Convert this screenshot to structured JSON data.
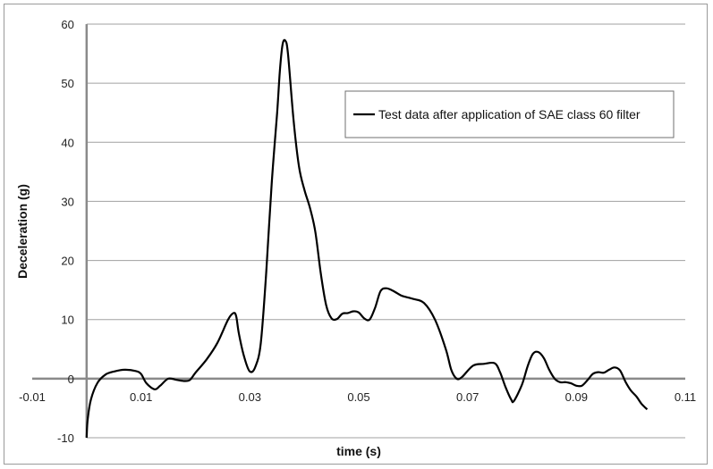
{
  "chart_data": {
    "type": "line",
    "xlabel": "time (s)",
    "ylabel": "Deceleration (g)",
    "xlim": [
      -0.01,
      0.11
    ],
    "ylim": [
      -10,
      60
    ],
    "x_ticks": [
      -0.01,
      0.01,
      0.03,
      0.05,
      0.07,
      0.09,
      0.11
    ],
    "x_tick_labels": [
      "-0.01",
      "0.01",
      "0.03",
      "0.05",
      "0.07",
      "0.09",
      "0.11"
    ],
    "y_ticks": [
      -10,
      0,
      10,
      20,
      30,
      40,
      50,
      60
    ],
    "y_tick_labels": [
      "-10",
      "0",
      "10",
      "20",
      "30",
      "40",
      "50",
      "60"
    ],
    "grid": "horizontal",
    "legend_position": "top-right",
    "series": [
      {
        "name": "Test data after application of SAE class 60 filter",
        "color": "#000000",
        "points": [
          [
            0.0,
            -10.0
          ],
          [
            0.0002,
            -6.8
          ],
          [
            0.0008,
            -3.5
          ],
          [
            0.002,
            -0.7
          ],
          [
            0.0035,
            0.7
          ],
          [
            0.005,
            1.2
          ],
          [
            0.007,
            1.5
          ],
          [
            0.009,
            1.3
          ],
          [
            0.01,
            0.8
          ],
          [
            0.011,
            -0.8
          ],
          [
            0.0125,
            -1.8
          ],
          [
            0.0135,
            -1.2
          ],
          [
            0.015,
            0.0
          ],
          [
            0.0165,
            -0.2
          ],
          [
            0.018,
            -0.4
          ],
          [
            0.019,
            -0.2
          ],
          [
            0.02,
            1.0
          ],
          [
            0.022,
            3.2
          ],
          [
            0.024,
            6.0
          ],
          [
            0.026,
            10.0
          ],
          [
            0.027,
            11.1
          ],
          [
            0.0275,
            10.5
          ],
          [
            0.028,
            7.5
          ],
          [
            0.029,
            3.5
          ],
          [
            0.03,
            1.2
          ],
          [
            0.031,
            2.0
          ],
          [
            0.032,
            6.0
          ],
          [
            0.033,
            18.0
          ],
          [
            0.034,
            33.0
          ],
          [
            0.035,
            45.0
          ],
          [
            0.0355,
            52.0
          ],
          [
            0.036,
            56.5
          ],
          [
            0.0365,
            57.2
          ],
          [
            0.037,
            55.0
          ],
          [
            0.038,
            44.0
          ],
          [
            0.039,
            36.0
          ],
          [
            0.04,
            32.0
          ],
          [
            0.041,
            29.0
          ],
          [
            0.042,
            25.0
          ],
          [
            0.043,
            18.0
          ],
          [
            0.044,
            12.5
          ],
          [
            0.045,
            10.2
          ],
          [
            0.046,
            10.1
          ],
          [
            0.047,
            11.0
          ],
          [
            0.048,
            11.1
          ],
          [
            0.049,
            11.4
          ],
          [
            0.05,
            11.2
          ],
          [
            0.051,
            10.2
          ],
          [
            0.052,
            10.0
          ],
          [
            0.053,
            12.0
          ],
          [
            0.054,
            14.8
          ],
          [
            0.055,
            15.3
          ],
          [
            0.056,
            15.0
          ],
          [
            0.057,
            14.5
          ],
          [
            0.058,
            14.0
          ],
          [
            0.06,
            13.5
          ],
          [
            0.062,
            12.8
          ],
          [
            0.064,
            10.0
          ],
          [
            0.066,
            5.0
          ],
          [
            0.067,
            1.5
          ],
          [
            0.068,
            0.0
          ],
          [
            0.069,
            0.3
          ],
          [
            0.071,
            2.2
          ],
          [
            0.073,
            2.5
          ],
          [
            0.075,
            2.6
          ],
          [
            0.076,
            1.0
          ],
          [
            0.077,
            -1.5
          ],
          [
            0.078,
            -3.5
          ],
          [
            0.0785,
            -3.8
          ],
          [
            0.08,
            -1.0
          ],
          [
            0.081,
            2.0
          ],
          [
            0.082,
            4.2
          ],
          [
            0.083,
            4.5
          ],
          [
            0.084,
            3.5
          ],
          [
            0.085,
            1.5
          ],
          [
            0.086,
            0.0
          ],
          [
            0.087,
            -0.6
          ],
          [
            0.088,
            -0.6
          ],
          [
            0.089,
            -0.8
          ],
          [
            0.09,
            -1.2
          ],
          [
            0.091,
            -1.2
          ],
          [
            0.092,
            -0.3
          ],
          [
            0.093,
            0.8
          ],
          [
            0.094,
            1.1
          ],
          [
            0.095,
            1.0
          ],
          [
            0.096,
            1.5
          ],
          [
            0.097,
            1.9
          ],
          [
            0.098,
            1.4
          ],
          [
            0.099,
            -0.5
          ],
          [
            0.1,
            -2.0
          ],
          [
            0.101,
            -3.0
          ],
          [
            0.102,
            -4.3
          ],
          [
            0.103,
            -5.2
          ]
        ]
      }
    ]
  }
}
